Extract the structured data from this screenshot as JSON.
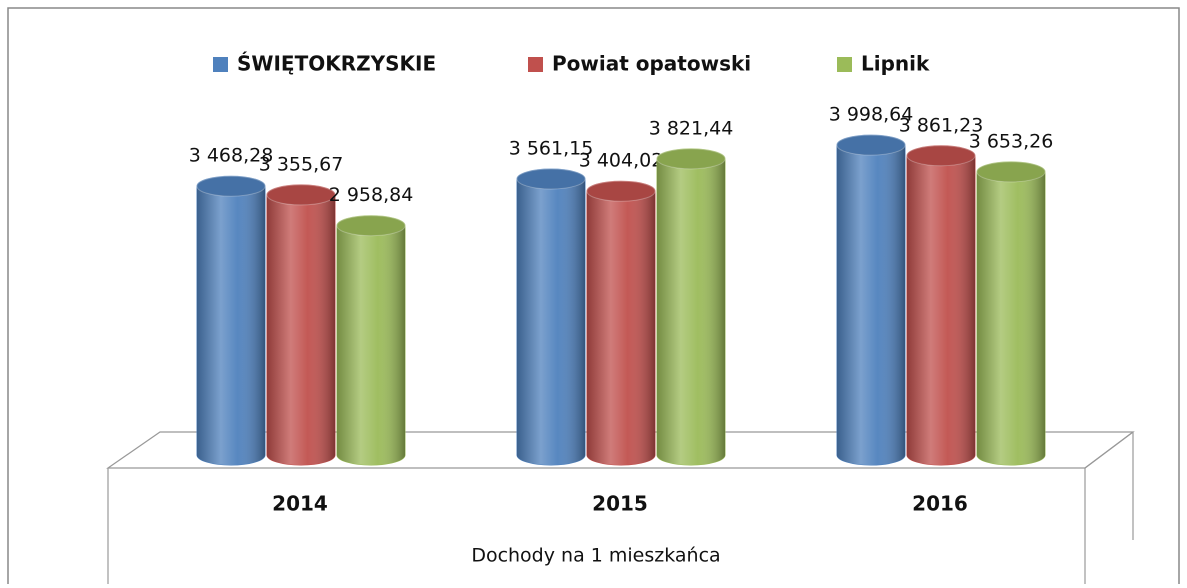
{
  "chart_data": {
    "type": "bar3d",
    "categories": [
      "2014",
      "2015",
      "2016"
    ],
    "x_label": "Dochody na 1 mieszkańca",
    "ylim": [
      0,
      4000
    ],
    "legend": "top",
    "series": [
      {
        "name": "ŚWIĘTOKRZYSKIE",
        "color": "#4f81bd",
        "values": [
          3468.28,
          3561.15,
          3998.64
        ],
        "value_labels": [
          "3 468,28",
          "3 561,15",
          "3 998,64"
        ]
      },
      {
        "name": "Powiat opatowski",
        "color": "#c0504d",
        "values": [
          3355.67,
          3404.02,
          3861.23
        ],
        "value_labels": [
          "3 355,67",
          "3 404,02",
          "3 861,23"
        ]
      },
      {
        "name": "Lipnik",
        "color": "#9bbb59",
        "values": [
          2958.84,
          3821.44,
          3653.26
        ],
        "value_labels": [
          "2 958,84",
          "3 821,44",
          "3 653,26"
        ]
      }
    ]
  }
}
